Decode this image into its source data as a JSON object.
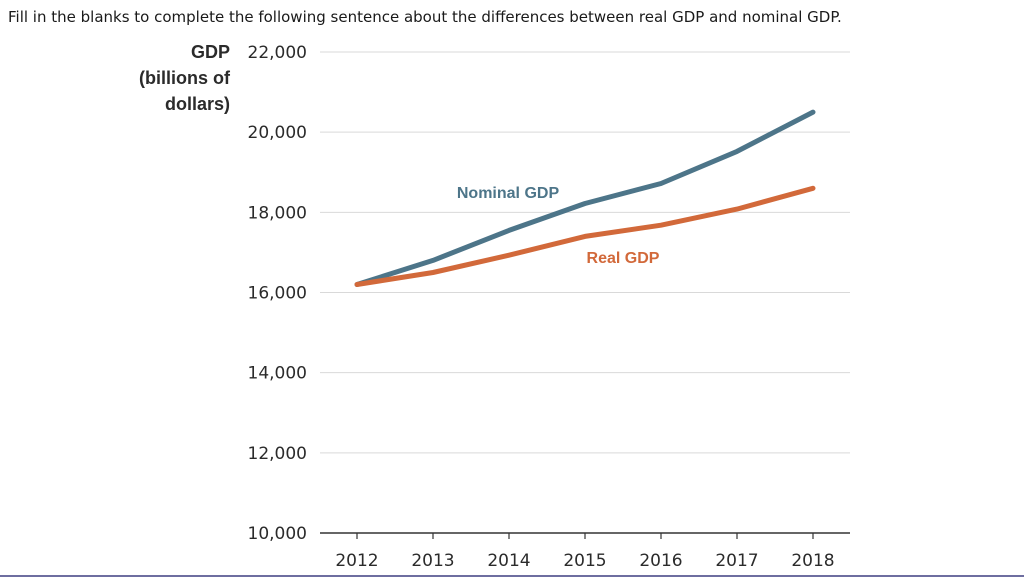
{
  "question": "Fill in the blanks to complete the following sentence about the differences between real GDP and nominal GDP.",
  "chart_data": {
    "type": "line",
    "title": "",
    "ylabel_lines": [
      "GDP",
      "(billions of",
      "dollars)"
    ],
    "xlabel": "",
    "x": [
      "2012",
      "2013",
      "2014",
      "2015",
      "2016",
      "2017",
      "2018"
    ],
    "ylim": [
      10000,
      22000
    ],
    "yticks": [
      10000,
      12000,
      14000,
      16000,
      18000,
      20000,
      22000
    ],
    "ytick_labels": [
      "10,000",
      "12,000",
      "14,000",
      "16,000",
      "18,000",
      "20,000",
      "22,000"
    ],
    "grid": true,
    "series": [
      {
        "name": "Nominal GDP",
        "color": "#4d7589",
        "values": [
          16200,
          16800,
          17550,
          18220,
          18720,
          19520,
          20500
        ]
      },
      {
        "name": "Real GDP",
        "color": "#d2693a",
        "values": [
          16200,
          16500,
          16930,
          17400,
          17680,
          18080,
          18600
        ]
      }
    ]
  }
}
